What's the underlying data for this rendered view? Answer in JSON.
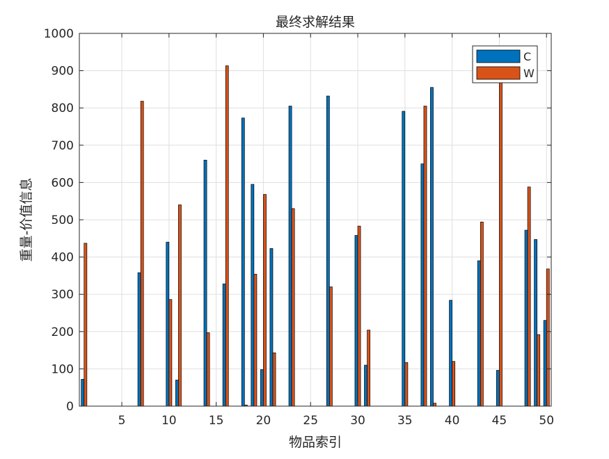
{
  "chart_data": {
    "type": "bar",
    "title": "最终求解结果",
    "xlabel": "物品索引",
    "ylabel": "重量-价值信息",
    "xlim": [
      0.5,
      50.5
    ],
    "ylim": [
      0,
      1000
    ],
    "xticks": [
      5,
      10,
      15,
      20,
      25,
      30,
      35,
      40,
      45,
      50
    ],
    "yticks": [
      0,
      100,
      200,
      300,
      400,
      500,
      600,
      700,
      800,
      900,
      1000
    ],
    "grid": true,
    "legend_position": "top-right",
    "x": [
      1,
      2,
      3,
      4,
      5,
      6,
      7,
      8,
      9,
      10,
      11,
      12,
      13,
      14,
      15,
      16,
      17,
      18,
      19,
      20,
      21,
      22,
      23,
      24,
      25,
      26,
      27,
      28,
      29,
      30,
      31,
      32,
      33,
      34,
      35,
      36,
      37,
      38,
      39,
      40,
      41,
      42,
      43,
      44,
      45,
      46,
      47,
      48,
      49,
      50
    ],
    "series": [
      {
        "name": "C",
        "color": "#0072BD",
        "values": [
          72,
          0,
          0,
          0,
          0,
          0,
          358,
          0,
          0,
          440,
          70,
          0,
          0,
          660,
          0,
          328,
          0,
          773,
          595,
          98,
          423,
          0,
          805,
          0,
          0,
          0,
          832,
          0,
          0,
          458,
          110,
          0,
          0,
          0,
          791,
          0,
          650,
          855,
          0,
          284,
          0,
          0,
          390,
          0,
          96,
          0,
          0,
          472,
          447,
          230
        ]
      },
      {
        "name": "W",
        "color": "#D95319",
        "values": [
          437,
          0,
          0,
          0,
          0,
          0,
          818,
          0,
          0,
          286,
          540,
          0,
          0,
          197,
          0,
          913,
          0,
          3,
          354,
          568,
          143,
          0,
          530,
          0,
          0,
          0,
          320,
          0,
          0,
          483,
          204,
          0,
          0,
          0,
          117,
          0,
          805,
          8,
          0,
          120,
          0,
          0,
          494,
          0,
          870,
          0,
          0,
          588,
          192,
          368
        ]
      }
    ]
  }
}
